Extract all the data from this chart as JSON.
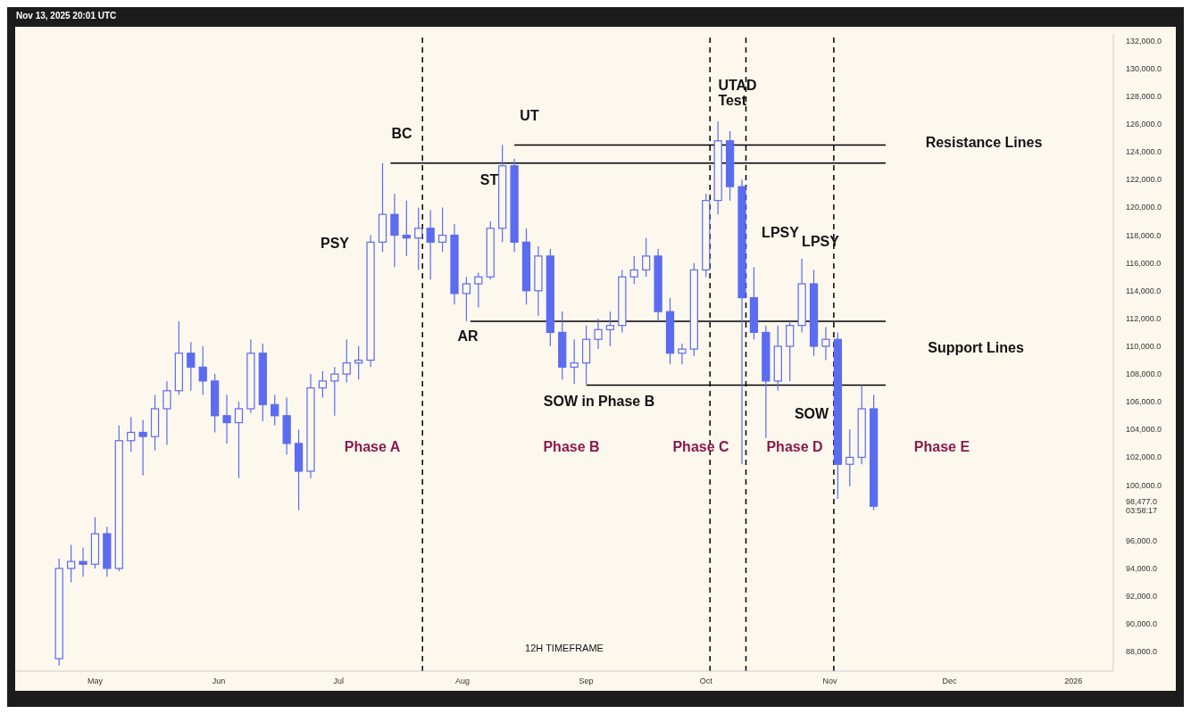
{
  "chart_data": {
    "type": "candlestick",
    "subtitle": "12H TIMEFRAME",
    "series": [
      {
        "color": "#5b6cf0",
        "x": [
          "2025-04-22",
          "2025-04-25",
          "2025-04-28",
          "2025-05-01",
          "2025-05-04",
          "2025-05-07",
          "2025-05-10",
          "2025-05-13",
          "2025-05-16",
          "2025-05-19",
          "2025-05-22",
          "2025-05-25",
          "2025-05-28",
          "2025-05-31",
          "2025-06-03",
          "2025-06-06",
          "2025-06-09",
          "2025-06-12",
          "2025-06-15",
          "2025-06-18",
          "2025-06-21",
          "2025-06-24",
          "2025-06-27",
          "2025-06-30",
          "2025-07-03",
          "2025-07-06",
          "2025-07-09",
          "2025-07-12",
          "2025-07-15",
          "2025-07-18",
          "2025-07-21",
          "2025-07-24",
          "2025-07-27",
          "2025-07-30",
          "2025-08-02",
          "2025-08-05",
          "2025-08-08",
          "2025-08-11",
          "2025-08-14",
          "2025-08-17",
          "2025-08-20",
          "2025-08-23",
          "2025-08-26",
          "2025-08-29",
          "2025-09-01",
          "2025-09-04",
          "2025-09-07",
          "2025-09-10",
          "2025-09-13",
          "2025-09-16",
          "2025-09-19",
          "2025-09-22",
          "2025-09-25",
          "2025-09-28",
          "2025-10-01",
          "2025-10-04",
          "2025-10-07",
          "2025-10-10",
          "2025-10-13",
          "2025-10-16",
          "2025-10-19",
          "2025-10-22",
          "2025-10-25",
          "2025-10-28",
          "2025-10-31",
          "2025-11-03",
          "2025-11-06",
          "2025-11-09",
          "2025-11-12"
        ],
        "ohlc": [
          [
            87500,
            94700,
            87000,
            94000
          ],
          [
            94000,
            95700,
            93000,
            94500
          ],
          [
            94500,
            95500,
            93400,
            94300
          ],
          [
            94300,
            97700,
            94000,
            96500
          ],
          [
            96500,
            97000,
            93400,
            94000
          ],
          [
            94000,
            104300,
            93800,
            103200
          ],
          [
            103200,
            104900,
            102400,
            103800
          ],
          [
            103800,
            104700,
            100700,
            103500
          ],
          [
            103500,
            106500,
            102500,
            105500
          ],
          [
            105500,
            107500,
            102900,
            106800
          ],
          [
            106800,
            111800,
            106500,
            109500
          ],
          [
            109500,
            110300,
            106800,
            108500
          ],
          [
            108500,
            110000,
            106500,
            107500
          ],
          [
            107500,
            108000,
            103800,
            105000
          ],
          [
            105000,
            106500,
            103000,
            104500
          ],
          [
            104500,
            106000,
            100500,
            105500
          ],
          [
            105500,
            110500,
            105200,
            109500
          ],
          [
            109500,
            110200,
            104600,
            105800
          ],
          [
            105800,
            106500,
            104300,
            105000
          ],
          [
            105000,
            106300,
            102200,
            103000
          ],
          [
            103000,
            104000,
            98200,
            101000
          ],
          [
            101000,
            108000,
            100500,
            107000
          ],
          [
            107000,
            108200,
            106300,
            107500
          ],
          [
            107500,
            108500,
            105000,
            108000
          ],
          [
            108000,
            110500,
            107400,
            108800
          ],
          [
            108800,
            110000,
            107600,
            109000
          ],
          [
            109000,
            118000,
            108500,
            117500
          ],
          [
            117500,
            123200,
            116800,
            119500
          ],
          [
            119500,
            121000,
            115700,
            118000
          ],
          [
            118000,
            120500,
            116500,
            117800
          ],
          [
            117800,
            120000,
            115500,
            118500
          ],
          [
            118500,
            119800,
            114800,
            117500
          ],
          [
            117500,
            120000,
            116800,
            118000
          ],
          [
            118000,
            118800,
            113000,
            113800
          ],
          [
            113800,
            115000,
            111800,
            114500
          ],
          [
            114500,
            115300,
            112800,
            115000
          ],
          [
            115000,
            119000,
            114800,
            118500
          ],
          [
            118500,
            124500,
            117500,
            123000
          ],
          [
            123000,
            123500,
            116800,
            117500
          ],
          [
            117500,
            118500,
            113000,
            114000
          ],
          [
            114000,
            117200,
            112200,
            116500
          ],
          [
            116500,
            117000,
            110000,
            111000
          ],
          [
            111000,
            112500,
            107600,
            108500
          ],
          [
            108500,
            110500,
            107300,
            108800
          ],
          [
            108800,
            111500,
            107300,
            110500
          ],
          [
            110500,
            112000,
            109800,
            111200
          ],
          [
            111200,
            112500,
            110000,
            111500
          ],
          [
            111500,
            115500,
            111000,
            115000
          ],
          [
            115000,
            116500,
            114500,
            115500
          ],
          [
            115500,
            117800,
            115000,
            116500
          ],
          [
            116500,
            117000,
            111800,
            112500
          ],
          [
            112500,
            113500,
            108700,
            109500
          ],
          [
            109500,
            110200,
            108700,
            109800
          ],
          [
            109800,
            116000,
            109300,
            115500
          ],
          [
            115500,
            121000,
            115000,
            120500
          ],
          [
            120500,
            126200,
            119500,
            124800
          ],
          [
            124800,
            125500,
            120500,
            121500
          ],
          [
            121500,
            122000,
            101500,
            113500
          ],
          [
            113500,
            115700,
            110500,
            111000
          ],
          [
            111000,
            111500,
            103400,
            107500
          ],
          [
            107500,
            111500,
            106800,
            110000
          ],
          [
            110000,
            111800,
            107500,
            111500
          ],
          [
            111500,
            116300,
            111000,
            114500
          ],
          [
            114500,
            115500,
            109300,
            110000
          ],
          [
            110000,
            111400,
            109000,
            110500
          ],
          [
            110500,
            111000,
            99000,
            101500
          ],
          [
            101500,
            104000,
            99900,
            102000
          ],
          [
            102000,
            107200,
            101500,
            105500
          ],
          [
            105500,
            106500,
            98200,
            98477
          ]
        ]
      },
      {
        "type": "line",
        "color": "#000000",
        "x": [
          "2025-08-14",
          "2025-11-15"
        ],
        "values": [
          124500,
          124500
        ]
      },
      {
        "type": "line",
        "color": "#000000",
        "x": [
          "2025-07-14",
          "2025-11-15"
        ],
        "values": [
          123200,
          123200
        ]
      },
      {
        "type": "line",
        "color": "#000000",
        "x": [
          "2025-08-03",
          "2025-11-15"
        ],
        "values": [
          111800,
          111800
        ]
      },
      {
        "type": "line",
        "color": "#000000",
        "x": [
          "2025-09-01",
          "2025-11-15"
        ],
        "values": [
          107200,
          107200
        ]
      }
    ],
    "xlim": [
      "2025-04-11",
      "2026-01-11"
    ],
    "xticks": [
      {
        "value": "2025-05-01",
        "label": "May"
      },
      {
        "value": "2025-06-01",
        "label": "Jun"
      },
      {
        "value": "2025-07-01",
        "label": "Jul"
      },
      {
        "value": "2025-08-01",
        "label": "Aug"
      },
      {
        "value": "2025-09-01",
        "label": "Sep"
      },
      {
        "value": "2025-10-01",
        "label": "Oct"
      },
      {
        "value": "2025-11-01",
        "label": "Nov"
      },
      {
        "value": "2025-12-01",
        "label": "Dec"
      },
      {
        "value": "2026-01-01",
        "label": "2026"
      }
    ],
    "ylim": [
      86600,
      132500
    ],
    "yticks": [
      {
        "value": 88000,
        "label": "88,000.0"
      },
      {
        "value": 90000,
        "label": "90,000.0"
      },
      {
        "value": 92000,
        "label": "92,000.0"
      },
      {
        "value": 94000,
        "label": "94,000.0"
      },
      {
        "value": 96000,
        "label": "96,000.0"
      },
      {
        "value": 98477,
        "label": "98,477.0\n03:58:17"
      },
      {
        "value": 100000,
        "label": "100,000.0"
      },
      {
        "value": 102000,
        "label": "102,000.0"
      },
      {
        "value": 104000,
        "label": "104,000.0"
      },
      {
        "value": 106000,
        "label": "106,000.0"
      },
      {
        "value": 108000,
        "label": "108,000.0"
      },
      {
        "value": 110000,
        "label": "110,000.0"
      },
      {
        "value": 112000,
        "label": "112,000.0"
      },
      {
        "value": 114000,
        "label": "114,000.0"
      },
      {
        "value": 116000,
        "label": "116,000.0"
      },
      {
        "value": 118000,
        "label": "118,000.0"
      },
      {
        "value": 120000,
        "label": "120,000.0"
      },
      {
        "value": 122000,
        "label": "122,000.0"
      },
      {
        "value": 124000,
        "label": "124,000.0"
      },
      {
        "value": 126000,
        "label": "126,000.0"
      },
      {
        "value": 128000,
        "label": "128,000.0"
      },
      {
        "value": 130000,
        "label": "130,000.0"
      },
      {
        "value": 132000,
        "label": "132,000.0"
      }
    ],
    "ref_lines": [
      {
        "axis": "x",
        "value": "2025-07-22",
        "line_style": "dashed",
        "color": "#000000"
      },
      {
        "axis": "x",
        "value": "2025-10-02",
        "line_style": "dashed",
        "color": "#000000"
      },
      {
        "axis": "x",
        "value": "2025-10-11",
        "line_style": "dashed",
        "color": "#000000"
      },
      {
        "axis": "x",
        "value": "2025-11-02",
        "line_style": "dashed",
        "color": "#000000"
      }
    ],
    "annotations": [
      "Nov 13, 2025 20:01 UTC",
      "PSY",
      "BC",
      "ST",
      "UT",
      "AR",
      "SOW in Phase B",
      "UTAD\nTest",
      "LPSY",
      "LPSY",
      "SOW",
      "Resistance Lines",
      "Support Lines",
      "Phase A",
      "Phase B",
      "Phase C",
      "Phase D",
      "Phase E"
    ]
  }
}
